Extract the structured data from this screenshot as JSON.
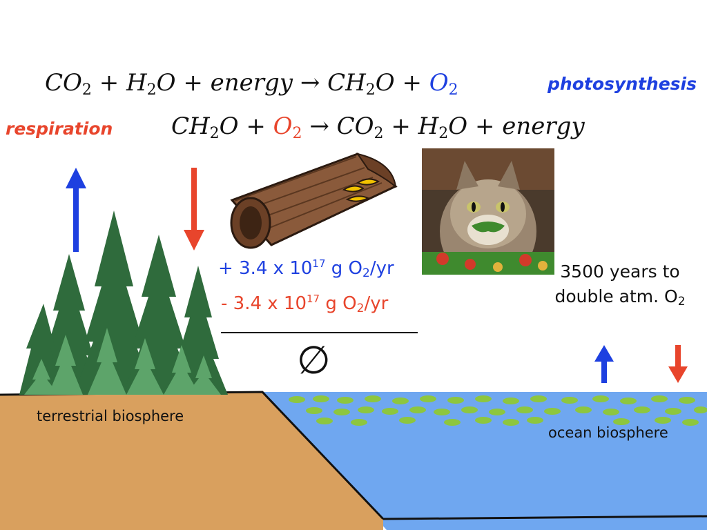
{
  "equations": {
    "photosynthesis": {
      "lhs_co": "CO",
      "lhs_co_sub": "2",
      "plus1": " + ",
      "lhs_h": "H",
      "lhs_h_sub": "2",
      "lhs_o": "O",
      "plus2": " + ",
      "lhs_energy": "energy",
      "arrow": " → ",
      "rhs_ch": "CH",
      "rhs_ch_sub": "2",
      "rhs_o": "O",
      "plus3": " + ",
      "rhs_o2": "O",
      "rhs_o2_sub": "2"
    },
    "respiration": {
      "lhs_ch": "CH",
      "lhs_ch_sub": "2",
      "lhs_o": "O",
      "plus1": " + ",
      "lhs_o2": "O",
      "lhs_o2_sub": "2",
      "arrow": " → ",
      "rhs_co": "CO",
      "rhs_co_sub": "2",
      "plus2": " + ",
      "rhs_h": "H",
      "rhs_h_sub": "2",
      "rhs_o": "O",
      "plus3": " + ",
      "rhs_energy": "energy"
    }
  },
  "labels": {
    "photosynthesis": "photosynthesis",
    "respiration": "respiration",
    "terrestrial": "terrestrial biosphere",
    "ocean": "ocean biosphere"
  },
  "flux": {
    "production": {
      "sign": "+ ",
      "coef": "3.4 x 10",
      "exp": "17",
      "unit_pre": " g O",
      "unit_sub": "2",
      "unit_post": "/yr"
    },
    "consumption": {
      "sign": "-  ",
      "coef": "3.4 x 10",
      "exp": "17",
      "unit_pre": " g O",
      "unit_sub": "2",
      "unit_post": "/yr"
    },
    "net_symbol": "∅"
  },
  "doubling_note": {
    "line1": "3500 years to",
    "line2_pre": "double atm. O",
    "line2_sub": "2"
  },
  "colors": {
    "photosynthesis_blue": "#1e40e0",
    "respiration_red": "#e8452c",
    "land": "#d9a05e",
    "ocean": "#6fa7f0",
    "tree_dark": "#2f6b3c",
    "tree_light": "#5da46a",
    "plankton": "#8dc63f"
  },
  "icons": {
    "log": "rotting-log-with-fungus",
    "cat": "cat-eating-salad"
  }
}
